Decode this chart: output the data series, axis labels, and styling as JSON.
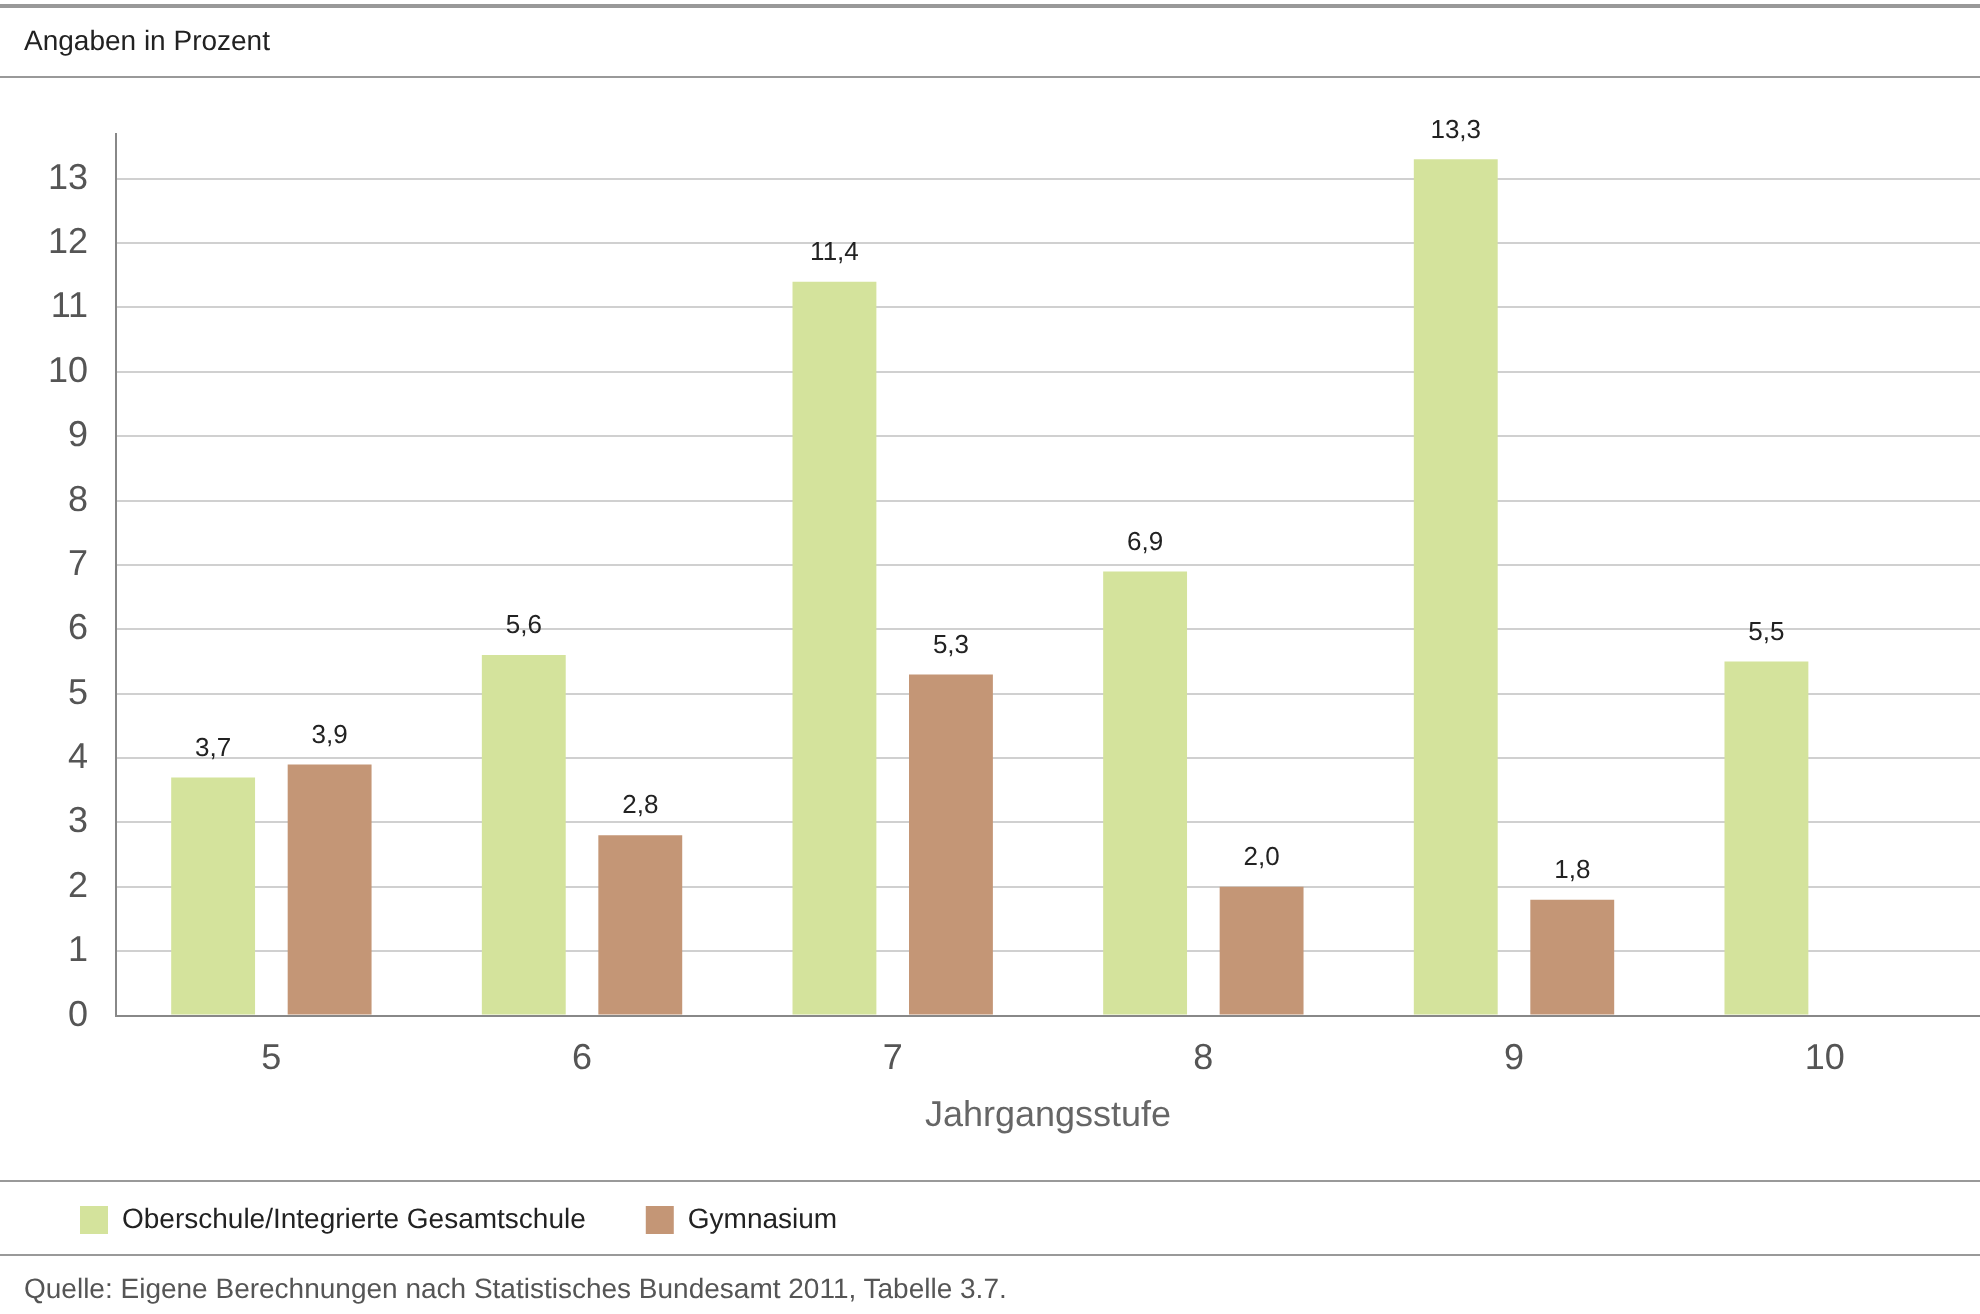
{
  "chart_data": {
    "type": "bar",
    "ylabel": "Angaben in Prozent",
    "xlabel": "Jahrgangsstufe",
    "categories": [
      "5",
      "6",
      "7",
      "8",
      "9",
      "10"
    ],
    "series": [
      {
        "name": "Oberschule/Integrierte Gesamtschule",
        "color": "#d4e39c",
        "values": [
          3.7,
          5.6,
          11.4,
          6.9,
          13.3,
          5.5
        ],
        "value_labels": [
          "3,7",
          "5,6",
          "11,4",
          "6,9",
          "13,3",
          "5,5"
        ]
      },
      {
        "name": "Gymnasium",
        "color": "#c49676",
        "values": [
          3.9,
          2.8,
          5.3,
          2.0,
          1.8,
          null
        ],
        "value_labels": [
          "3,9",
          "2,8",
          "5,3",
          "2,0",
          "1,8",
          null
        ]
      }
    ],
    "ylim": [
      0,
      13.7
    ],
    "yticks": [
      0,
      1,
      2,
      3,
      4,
      5,
      6,
      7,
      8,
      9,
      10,
      11,
      12,
      13
    ],
    "grid": "y",
    "legend": "bottom",
    "annotations": [
      "Quelle: Eigene Berechnungen nach Statistisches Bundesamt 2011, Tabelle 3.7."
    ]
  }
}
